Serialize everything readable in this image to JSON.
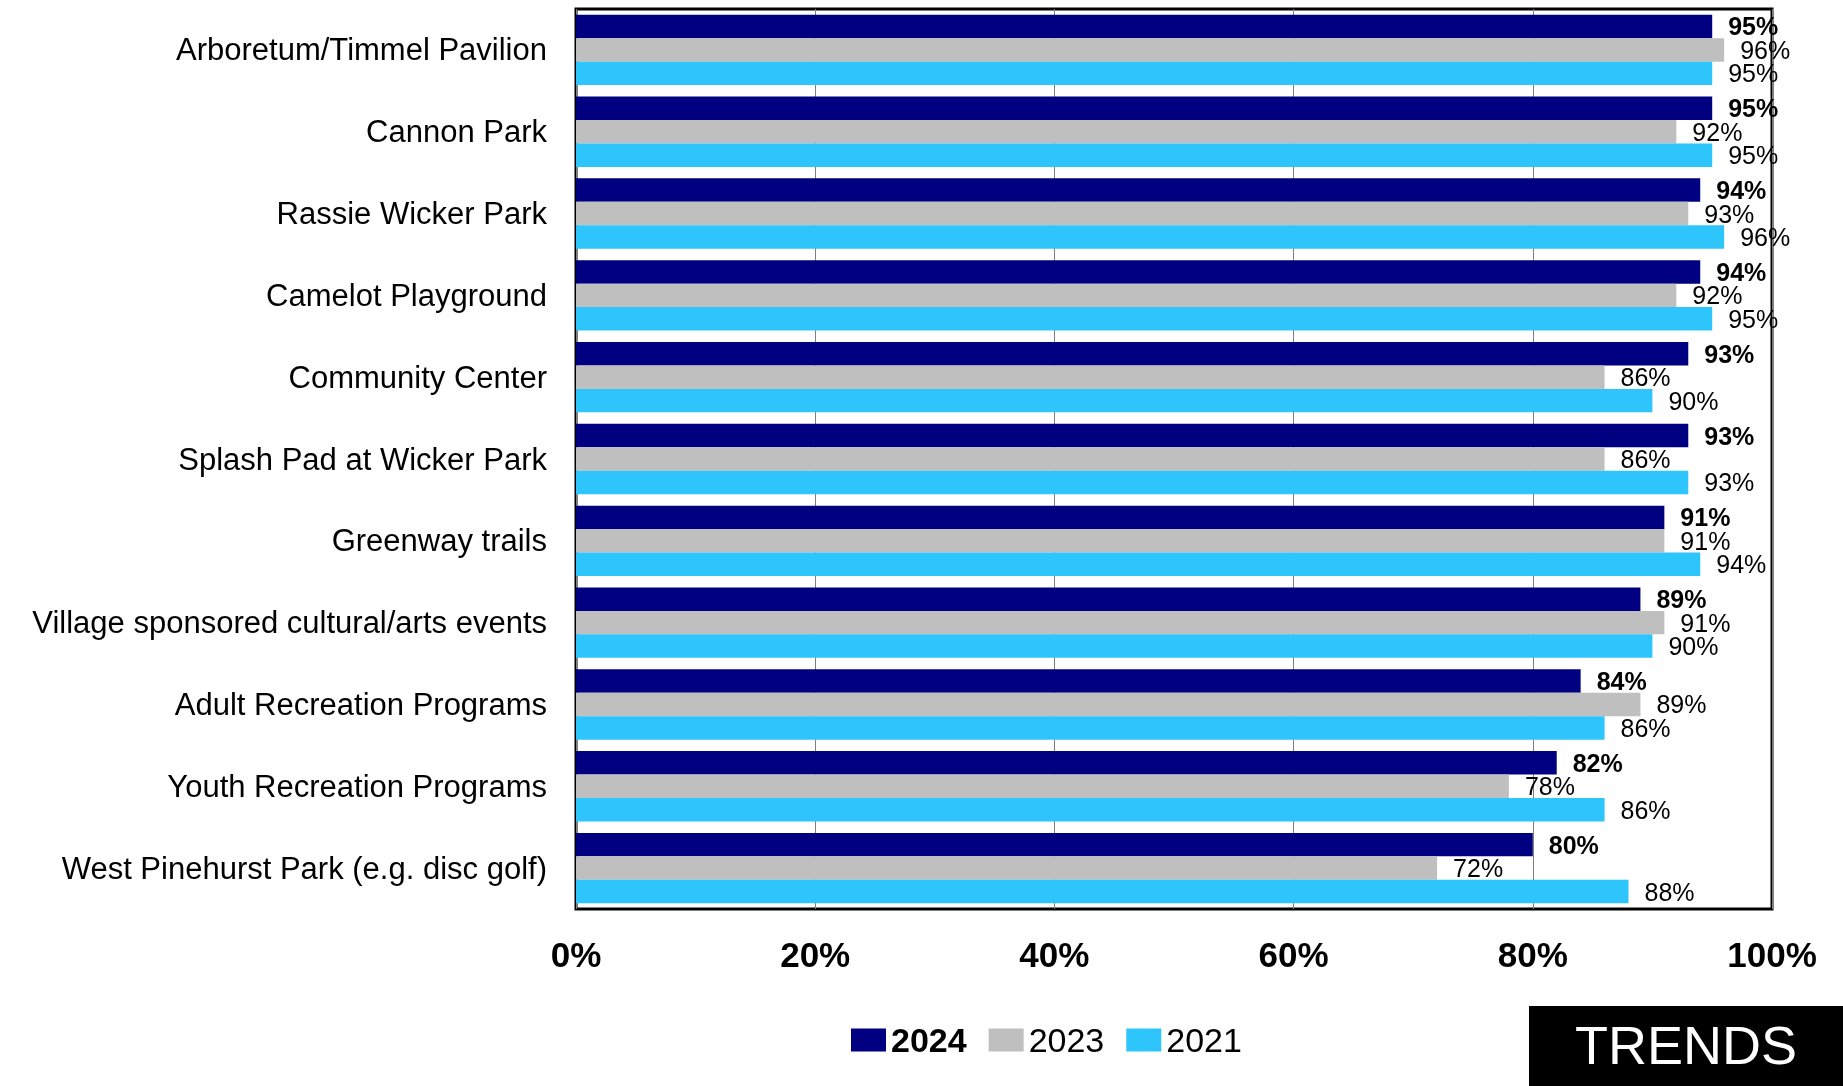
{
  "chart_data": {
    "type": "bar",
    "orientation": "horizontal",
    "categories": [
      "Arboretum/Timmel Pavilion",
      "Cannon Park",
      "Rassie Wicker Park",
      "Camelot Playground",
      "Community Center",
      "Splash Pad at Wicker Park",
      "Greenway trails",
      "Village sponsored cultural/arts events",
      "Adult Recreation Programs",
      "Youth Recreation Programs",
      "West Pinehurst Park (e.g. disc golf)"
    ],
    "series": [
      {
        "name": "2024",
        "color": "#000080",
        "values": [
          95,
          95,
          94,
          94,
          93,
          93,
          91,
          89,
          84,
          82,
          80
        ],
        "value_labels": [
          "95%",
          "95%",
          "94%",
          "94%",
          "93%",
          "93%",
          "91%",
          "89%",
          "84%",
          "82%",
          "80%"
        ]
      },
      {
        "name": "2023",
        "color": "#bfbfbf",
        "values": [
          96,
          92,
          93,
          92,
          86,
          86,
          91,
          91,
          89,
          78,
          72
        ],
        "value_labels": [
          "96%",
          "92%",
          "93%",
          "92%",
          "86%",
          "86%",
          "91%",
          "91%",
          "89%",
          "78%",
          "72%"
        ]
      },
      {
        "name": "2021",
        "color": "#2ec4fc",
        "values": [
          95,
          95,
          96,
          95,
          90,
          93,
          94,
          90,
          86,
          86,
          88
        ],
        "value_labels": [
          "95%",
          "95%",
          "96%",
          "95%",
          "90%",
          "93%",
          "94%",
          "90%",
          "86%",
          "86%",
          "88%"
        ]
      }
    ],
    "xlim": [
      0,
      100
    ],
    "xticks": [
      {
        "value": 0,
        "label": "0%"
      },
      {
        "value": 20,
        "label": "20%"
      },
      {
        "value": 40,
        "label": "40%"
      },
      {
        "value": 60,
        "label": "60%"
      },
      {
        "value": 80,
        "label": "80%"
      },
      {
        "value": 100,
        "label": "100%"
      }
    ],
    "grid": "x",
    "legend": "bottom",
    "annotations": [
      "TRENDS"
    ]
  }
}
